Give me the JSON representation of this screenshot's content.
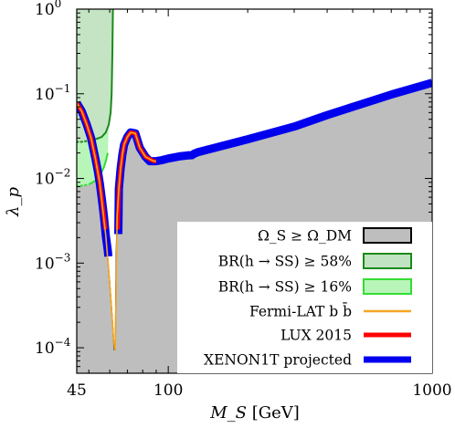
{
  "chart_data": {
    "type": "line",
    "title": "",
    "xlabel": "M_S [GeV]",
    "ylabel": "λ_p",
    "x_scale": "log",
    "y_scale": "log",
    "xlim": [
      45,
      1000
    ],
    "ylim": [
      5e-05,
      1
    ],
    "grid": false,
    "legend_position": "bottom-right",
    "x_ticks": [
      {
        "value": 45,
        "label": "45"
      },
      {
        "value": 100,
        "label": "100"
      },
      {
        "value": 1000,
        "label": "1000"
      }
    ],
    "y_ticks": [
      {
        "value": 0.0001,
        "base": "10",
        "exp": "−4"
      },
      {
        "value": 0.001,
        "base": "10",
        "exp": "−3"
      },
      {
        "value": 0.01,
        "base": "10",
        "exp": "−2"
      },
      {
        "value": 0.1,
        "base": "10",
        "exp": "−1"
      },
      {
        "value": 1,
        "base": "10",
        "exp": "0"
      }
    ],
    "colors": {
      "relic_fill": "#bebebe",
      "relic_edge": "#000000",
      "br58_fill": "#c1e3c1",
      "br58_edge": "#1a8a1a",
      "br16_fill": "#b8f5b8",
      "br16_edge": "#33dd33",
      "fermi": "#f5a623",
      "lux": "#ff0000",
      "xenon": "#0000ee"
    },
    "legend": [
      {
        "key": "relic",
        "label": "Ω_S ≥ Ω_DM"
      },
      {
        "key": "br58",
        "label": "BR(h → SS) ≥ 58%"
      },
      {
        "key": "br16",
        "label": "BR(h → SS) ≥ 16%"
      },
      {
        "key": "fermi",
        "label": "Fermi-LAT b b̄"
      },
      {
        "key": "lux",
        "label": "LUX 2015"
      },
      {
        "key": "xenon",
        "label": "XENON1T projected"
      }
    ],
    "series": [
      {
        "key": "relic",
        "x": [
          45,
          47,
          49,
          51,
          53,
          54,
          55,
          56,
          57,
          58,
          59,
          60,
          61,
          62,
          62.5,
          63,
          63.5,
          64,
          65,
          66,
          67,
          68,
          70,
          72,
          75,
          78,
          82,
          85,
          88,
          90,
          95,
          100,
          110,
          120,
          123,
          125,
          130,
          150,
          200,
          300,
          400,
          500,
          700,
          1000
        ],
        "y": [
          0.078,
          0.062,
          0.044,
          0.03,
          0.017,
          0.0125,
          0.0088,
          0.0058,
          0.0036,
          0.0021,
          0.0011,
          0.00058,
          0.00028,
          0.00013,
          9.5e-05,
          9.5e-05,
          0.0012,
          0.0035,
          0.0076,
          0.013,
          0.019,
          0.025,
          0.031,
          0.035,
          0.034,
          0.023,
          0.018,
          0.016,
          0.016,
          0.016,
          0.0165,
          0.0172,
          0.0182,
          0.0188,
          0.0188,
          0.0195,
          0.0205,
          0.023,
          0.029,
          0.041,
          0.056,
          0.07,
          0.098,
          0.135
        ]
      },
      {
        "key": "br58",
        "x": [
          45,
          47,
          50,
          53,
          56,
          58,
          59.5,
          60.5,
          61,
          61.4,
          61.7
        ],
        "y": [
          0.027,
          0.027,
          0.028,
          0.029,
          0.031,
          0.035,
          0.043,
          0.06,
          0.1,
          0.3,
          1
        ]
      },
      {
        "key": "br16",
        "x": [
          45,
          47,
          50,
          53,
          55,
          57,
          58,
          59
        ],
        "y": [
          0.0082,
          0.0082,
          0.0085,
          0.0094,
          0.0108,
          0.0135,
          0.016,
          0.02
        ]
      },
      {
        "key": "fermi",
        "x": [
          45,
          47,
          49,
          51,
          53,
          55,
          58,
          60,
          62,
          62.8,
          63,
          64,
          65,
          66,
          67,
          68,
          70,
          72,
          75,
          78,
          82,
          88,
          90
        ],
        "y": [
          0.078,
          0.062,
          0.044,
          0.03,
          0.017,
          0.0088,
          0.0021,
          0.00058,
          0.00013,
          9.5e-05,
          9.5e-05,
          0.0035,
          0.0076,
          0.013,
          0.019,
          0.025,
          0.031,
          0.035,
          0.034,
          0.023,
          0.018,
          0.016,
          0.016
        ]
      },
      {
        "key": "lux",
        "x": [
          45,
          47,
          49,
          51,
          53,
          54,
          55,
          56,
          57,
          57.8,
          64.3,
          65,
          66,
          67,
          68,
          70,
          72,
          75,
          78,
          82,
          88,
          90
        ],
        "y": [
          0.078,
          0.062,
          0.044,
          0.03,
          0.017,
          0.0125,
          0.0088,
          0.0058,
          0.0036,
          0.0025,
          0.0025,
          0.0076,
          0.013,
          0.019,
          0.025,
          0.031,
          0.035,
          0.034,
          0.023,
          0.018,
          0.016,
          0.016
        ]
      },
      {
        "key": "xenon",
        "x": [
          45,
          47,
          49,
          51,
          53,
          54,
          55,
          56,
          57,
          58,
          59,
          59.3,
          64.7,
          65,
          66,
          67,
          68,
          70,
          72,
          75,
          78,
          82,
          85,
          88,
          90,
          95,
          100,
          110,
          120,
          123,
          125,
          130,
          150,
          200,
          300,
          400,
          500,
          700,
          1000
        ],
        "y": [
          0.078,
          0.062,
          0.044,
          0.03,
          0.017,
          0.0125,
          0.0088,
          0.0058,
          0.0036,
          0.0021,
          0.0014,
          0.0012,
          0.0022,
          0.0076,
          0.013,
          0.019,
          0.025,
          0.031,
          0.035,
          0.034,
          0.023,
          0.018,
          0.016,
          0.016,
          0.016,
          0.0165,
          0.0172,
          0.0182,
          0.0188,
          0.0188,
          0.0195,
          0.0205,
          0.023,
          0.029,
          0.041,
          0.056,
          0.07,
          0.098,
          0.135
        ]
      }
    ]
  }
}
